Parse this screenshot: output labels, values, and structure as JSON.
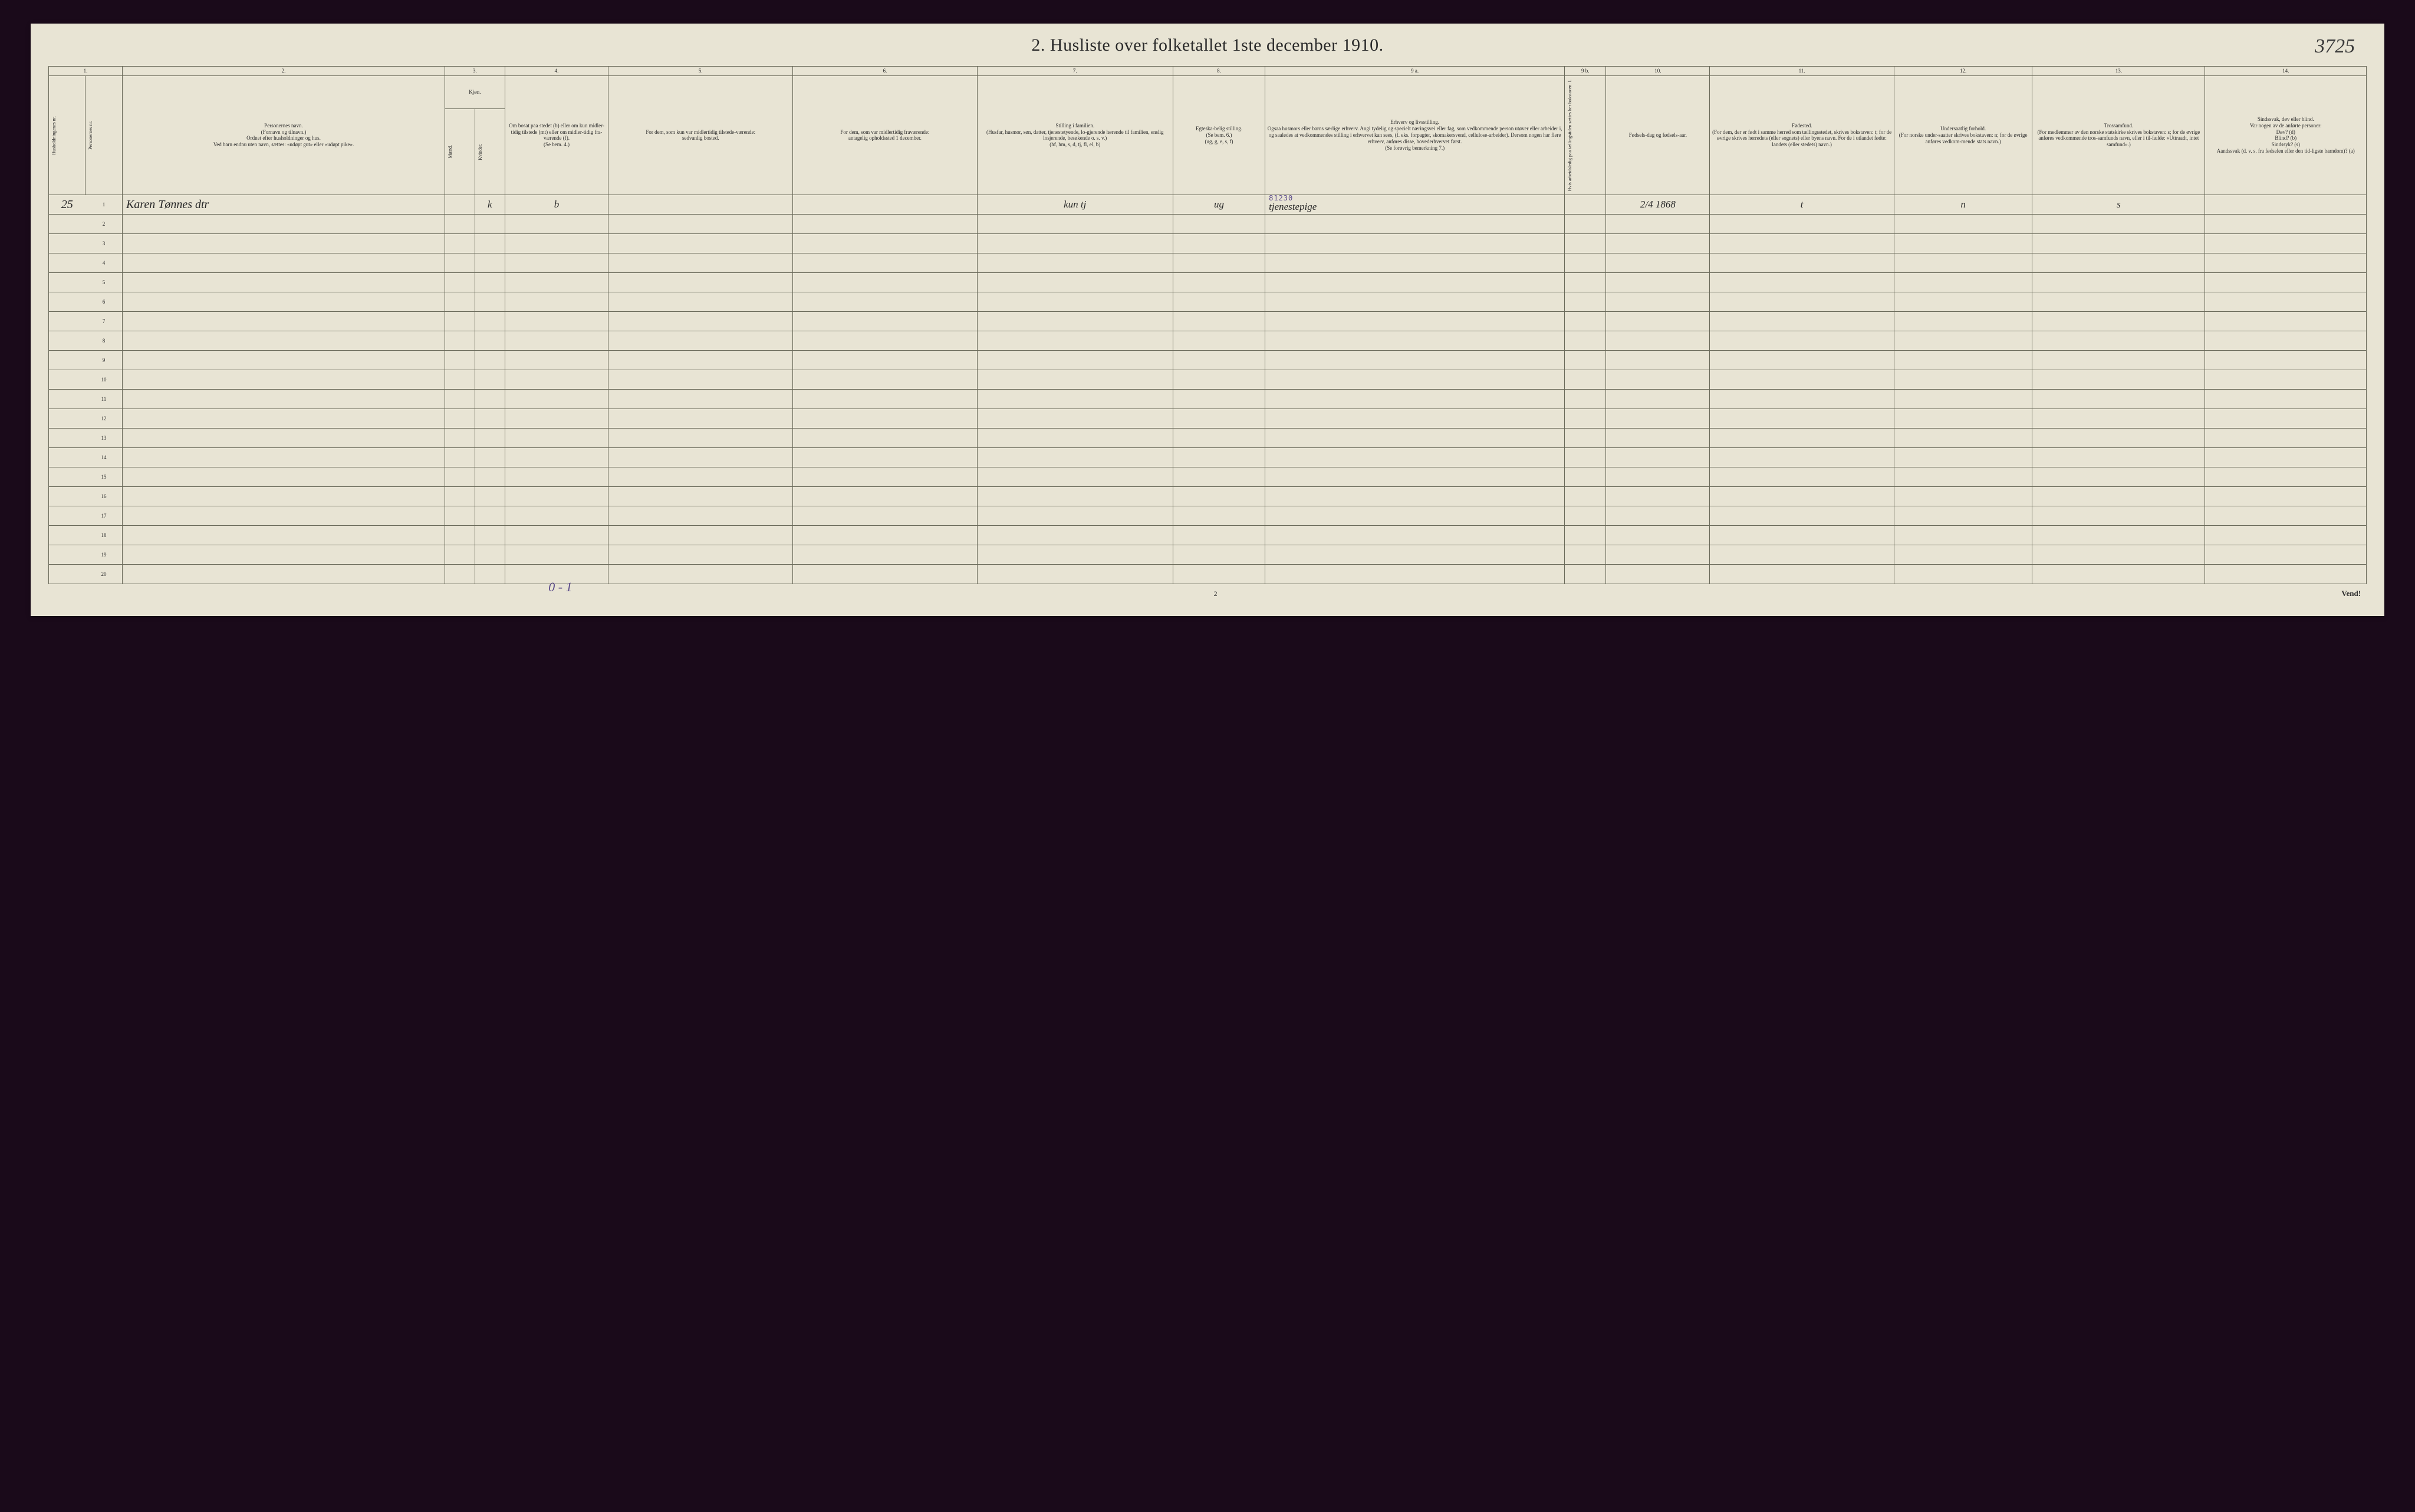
{
  "title_number": "2.",
  "title": "Husliste over folketallet 1ste december 1910.",
  "top_right_annotation": "3725",
  "column_numbers": [
    "1.",
    "2.",
    "3.",
    "4.",
    "5.",
    "6.",
    "7.",
    "8.",
    "9 a.",
    "9 b.",
    "10.",
    "11.",
    "12.",
    "13.",
    "14."
  ],
  "headers": {
    "c1a": "Husholdningenes nr.",
    "c1b": "Personernes nr.",
    "c2": "Personernes navn.\n(Fornavn og tilnavn.)\nOrdnet efter husholdninger og hus.\nVed barn endnu uten navn, sættes: «udøpt gut» eller «udøpt pike».",
    "c3": "Kjøn.",
    "c3a": "Mænd.",
    "c3b": "Kvinder.",
    "c3_sub": "m.  k.",
    "c4": "Om bosat paa stedet (b) eller om kun midler-tidig tilstede (mt) eller om midler-tidig fra-værende (f).\n(Se bem. 4.)",
    "c5": "For dem, som kun var midlertidig tilstede-værende:\nsedvanlig bosted.",
    "c6": "For dem, som var midlertidig fraværende:\nantagelig opholdssted 1 december.",
    "c7": "Stilling i familien.\n(Husfar, husmor, søn, datter, tjenestetyende, lo-gjerende hørende til familien, enslig losjerende, besøkende o. s. v.)\n(hf, hm, s, d, tj, fl, el, b)",
    "c8": "Egteska-belig stilling.\n(Se bem. 6.)\n(ug, g, e, s, f)",
    "c9a": "Erhverv og livsstilling.\nOgsaa husmors eller barns særlige erhverv. Angi tydelig og specielt næringsvei eller fag, som vedkommende person utøver eller arbeider i, og saaledes at vedkommendes stilling i erhvervet kan sees, (f. eks. forpagter, skomakersvend, cellulose-arbeider). Dersom nogen har flere erhverv, anføres disse, hovederhvervet først.\n(Se forøvrig bemerkning 7.)",
    "c9b": "Hvis arbeidsledig paa tællingstiden sættes her bokstaven: l.",
    "c10": "Fødsels-dag og fødsels-aar.",
    "c11": "Fødested.\n(For dem, der er født i samme herred som tællingsstedet, skrives bokstaven: t; for de øvrige skrives herredets (eller sognets) eller byens navn. For de i utlandet fødte: landets (eller stedets) navn.)",
    "c12": "Undersaatlig forhold.\n(For norske under-saatter skrives bokstaven: n; for de øvrige anføres vedkom-mende stats navn.)",
    "c13": "Trossamfund.\n(For medlemmer av den norske statskirke skrives bokstaven: s; for de øvrige anføres vedkommende tros-samfunds navn, eller i til-fælde: «Uttraadt, intet samfund».)",
    "c14": "Sindssvak, døv eller blind.\nVar nogen av de anførte personer:\nDøv? (d)\nBlind? (b)\nSindssyk? (s)\nAandssvak (d. v. s. fra fødselen eller den tid-ligste barndom)? (a)"
  },
  "data_row": {
    "household_num": "25",
    "person_num": "1",
    "name": "Karen Tønnes dtr",
    "sex": "k",
    "residence": "b",
    "c5": "",
    "c6": "",
    "family_position": "kun   tj",
    "marital": "ug",
    "occupation_stamp": "81230",
    "occupation_hand": "tjenestepige",
    "c9b": "",
    "birth": "2/4 1868",
    "birthplace": "t",
    "nationality": "n",
    "religion": "s",
    "c14": ""
  },
  "row_numbers": [
    "1",
    "2",
    "3",
    "4",
    "5",
    "6",
    "7",
    "8",
    "9",
    "10",
    "11",
    "12",
    "13",
    "14",
    "15",
    "16",
    "17",
    "18",
    "19",
    "20"
  ],
  "bottom_annotation": "0 - 1",
  "page_number": "2",
  "turn_over": "Vend!",
  "column_widths": {
    "c1a": "1.6%",
    "c1b": "1.6%",
    "c2": "14%",
    "c3a": "1.3%",
    "c3b": "1.3%",
    "c4": "4.5%",
    "c5": "8%",
    "c6": "8%",
    "c7": "8.5%",
    "c8": "4%",
    "c9a": "13%",
    "c9b": "1.8%",
    "c10": "4.5%",
    "c11": "8%",
    "c12": "6%",
    "c13": "7.5%",
    "c14": "7%"
  },
  "colors": {
    "page_bg": "#e8e4d4",
    "outer_bg": "#1a0a1a",
    "border": "#6a6a5a",
    "text": "#2a2a2a",
    "stamp": "#5a4a8a"
  }
}
